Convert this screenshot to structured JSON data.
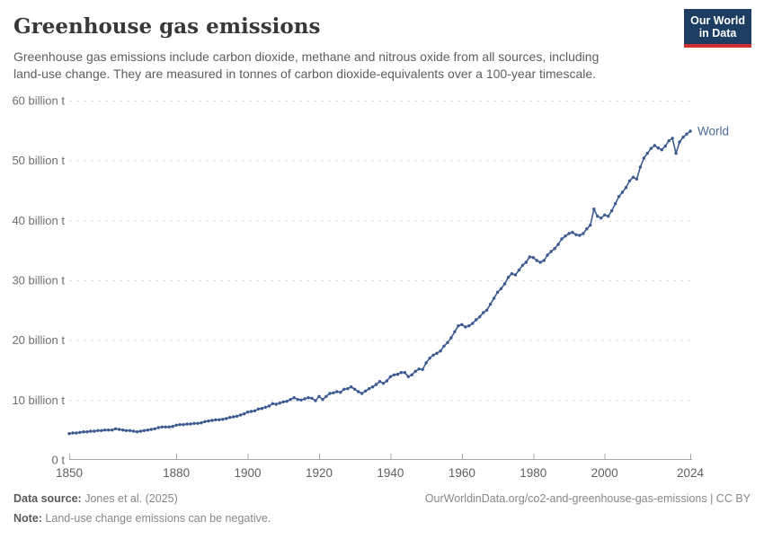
{
  "header": {
    "title": "Greenhouse gas emissions",
    "subtitle_lines": [
      "Greenhouse gas emissions include carbon dioxide, methane and nitrous oxide from all sources, including",
      "land-use change. They are measured in tonnes of carbon dioxide-equivalents over a 100-year timescale."
    ],
    "logo": {
      "line1": "Our World",
      "line2": "in Data"
    }
  },
  "chart_data": {
    "type": "line",
    "title": "Greenhouse gas emissions",
    "xlabel": "",
    "ylabel": "",
    "unit": "billion t",
    "xlim": [
      1850,
      2024
    ],
    "ylim": [
      0,
      60
    ],
    "grid": "horizontal-dashed",
    "legend_position": "end-of-line",
    "y_ticks": [
      {
        "value": 0,
        "label": "0 t"
      },
      {
        "value": 10,
        "label": "10 billion t"
      },
      {
        "value": 20,
        "label": "20 billion t"
      },
      {
        "value": 30,
        "label": "30 billion t"
      },
      {
        "value": 40,
        "label": "40 billion t"
      },
      {
        "value": 50,
        "label": "50 billion t"
      },
      {
        "value": 60,
        "label": "60 billion t"
      }
    ],
    "x_ticks": [
      {
        "year": 1850,
        "label": "1850"
      },
      {
        "year": 1880,
        "label": "1880"
      },
      {
        "year": 1900,
        "label": "1900"
      },
      {
        "year": 1920,
        "label": "1920"
      },
      {
        "year": 1940,
        "label": "1940"
      },
      {
        "year": 1960,
        "label": "1960"
      },
      {
        "year": 1980,
        "label": "1980"
      },
      {
        "year": 2000,
        "label": "2000"
      },
      {
        "year": 2024,
        "label": "2024"
      }
    ],
    "series": [
      {
        "name": "World",
        "color": "#3c5a90",
        "label_color": "#4c6a9c",
        "start_year": 1850,
        "end_year": 2024,
        "values": [
          4.4,
          4.5,
          4.5,
          4.6,
          4.7,
          4.7,
          4.8,
          4.8,
          4.9,
          4.9,
          5.0,
          5.0,
          5.0,
          5.2,
          5.1,
          5.0,
          4.9,
          4.9,
          4.8,
          4.7,
          4.8,
          4.9,
          5.0,
          5.1,
          5.2,
          5.4,
          5.5,
          5.5,
          5.5,
          5.6,
          5.8,
          5.9,
          5.9,
          6.0,
          6.0,
          6.1,
          6.1,
          6.2,
          6.4,
          6.5,
          6.6,
          6.7,
          6.7,
          6.8,
          6.9,
          7.1,
          7.2,
          7.3,
          7.5,
          7.7,
          8.0,
          8.1,
          8.2,
          8.5,
          8.6,
          8.8,
          9.0,
          9.4,
          9.3,
          9.5,
          9.7,
          9.8,
          10.1,
          10.4,
          10.1,
          10.0,
          10.2,
          10.4,
          10.3,
          9.9,
          10.6,
          10.1,
          10.6,
          11.1,
          11.2,
          11.4,
          11.3,
          11.8,
          11.9,
          12.2,
          11.8,
          11.4,
          11.1,
          11.5,
          11.9,
          12.2,
          12.6,
          13.1,
          12.8,
          13.2,
          13.9,
          14.2,
          14.3,
          14.6,
          14.6,
          13.9,
          14.2,
          14.8,
          15.2,
          15.1,
          16.2,
          17.0,
          17.5,
          17.8,
          18.2,
          19.0,
          19.6,
          20.4,
          21.4,
          22.4,
          22.6,
          22.2,
          22.4,
          22.8,
          23.4,
          23.9,
          24.6,
          25.0,
          26.0,
          27.0,
          28.0,
          28.6,
          29.4,
          30.5,
          31.1,
          30.9,
          31.7,
          32.5,
          33.0,
          33.9,
          33.8,
          33.3,
          33.0,
          33.3,
          34.2,
          34.8,
          35.3,
          36.0,
          36.9,
          37.4,
          37.8,
          38.0,
          37.6,
          37.5,
          37.8,
          38.6,
          39.2,
          41.9,
          40.7,
          40.4,
          40.9,
          40.7,
          41.6,
          42.8,
          44.0,
          44.7,
          45.5,
          46.6,
          47.2,
          46.9,
          48.9,
          50.4,
          51.2,
          52.0,
          52.5,
          52.1,
          51.8,
          52.4,
          53.3,
          53.7,
          51.2,
          53.1,
          53.9,
          54.4,
          54.9
        ]
      }
    ]
  },
  "footer": {
    "data_source_label": "Data source:",
    "data_source_value": " Jones et al. (2025)",
    "link": "OurWorldinData.org/co2-and-greenhouse-gas-emissions | CC BY",
    "note_label": "Note:",
    "note_value": " Land-use change emissions can be negative."
  },
  "colors": {
    "line": "#3c5a90",
    "series_label": "#4c6a9c",
    "gridline": "#d9d9d9",
    "axis": "#a8a8a8",
    "y_tick_text": "#6e6e6e",
    "x_tick_text": "#5f5f5f",
    "logo_bg": "#1d3d63",
    "logo_stripe": "#cf2f2f"
  }
}
